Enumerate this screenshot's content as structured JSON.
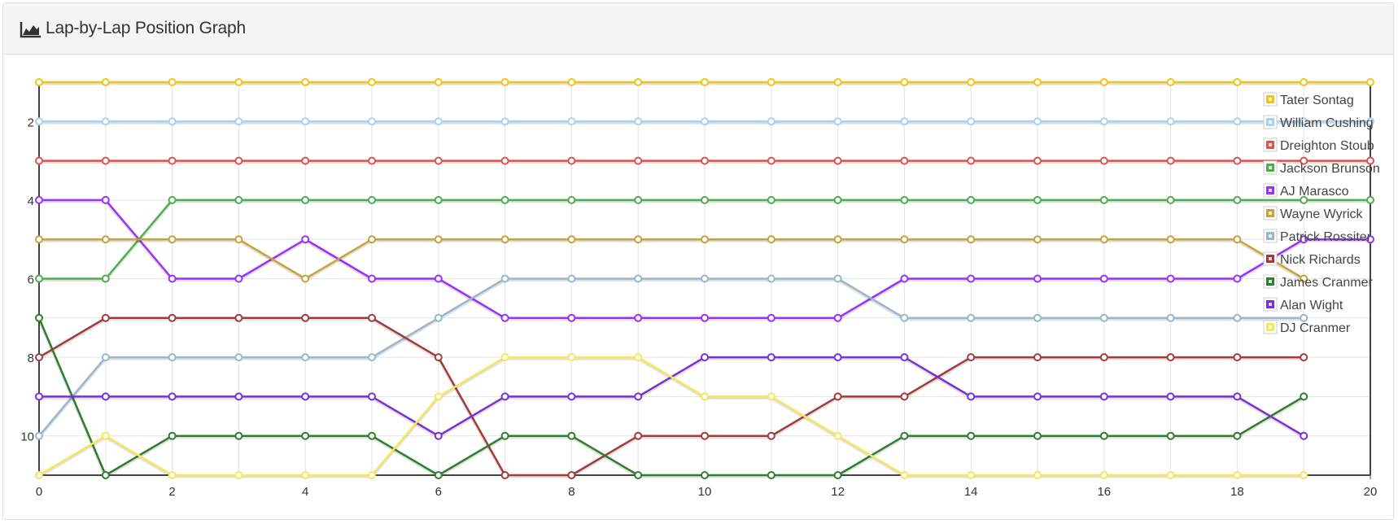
{
  "panel": {
    "title": "Lap-by-Lap Position Graph",
    "icon": "area-chart-icon"
  },
  "chart_data": {
    "type": "line",
    "title": "Lap-by-Lap Position Graph",
    "xlabel": "",
    "ylabel": "",
    "xlim": [
      0,
      20
    ],
    "ylim": [
      1,
      11
    ],
    "y_reversed": true,
    "x_ticks": [
      0,
      2,
      4,
      6,
      8,
      10,
      12,
      14,
      16,
      18,
      20
    ],
    "y_ticks": [
      2,
      4,
      6,
      8,
      10
    ],
    "grid": true,
    "legend_position": "top-right",
    "series": [
      {
        "name": "Tater Sontag",
        "color": "#f0c419",
        "values": [
          1,
          1,
          1,
          1,
          1,
          1,
          1,
          1,
          1,
          1,
          1,
          1,
          1,
          1,
          1,
          1,
          1,
          1,
          1,
          1,
          1
        ]
      },
      {
        "name": "William Cushing",
        "color": "#a9d2f0",
        "values": [
          2,
          2,
          2,
          2,
          2,
          2,
          2,
          2,
          2,
          2,
          2,
          2,
          2,
          2,
          2,
          2,
          2,
          2,
          2,
          2,
          2
        ]
      },
      {
        "name": "Dreighton Stoub",
        "color": "#d9534f",
        "values": [
          3,
          3,
          3,
          3,
          3,
          3,
          3,
          3,
          3,
          3,
          3,
          3,
          3,
          3,
          3,
          3,
          3,
          3,
          3,
          3,
          3
        ]
      },
      {
        "name": "Jackson Brunson",
        "color": "#4cae4c",
        "values": [
          6,
          6,
          4,
          4,
          4,
          4,
          4,
          4,
          4,
          4,
          4,
          4,
          4,
          4,
          4,
          4,
          4,
          4,
          4,
          4,
          4
        ]
      },
      {
        "name": "AJ Marasco",
        "color": "#9b30ff",
        "values": [
          4,
          4,
          6,
          6,
          5,
          6,
          6,
          7,
          7,
          7,
          7,
          7,
          7,
          6,
          6,
          6,
          6,
          6,
          6,
          5,
          5
        ]
      },
      {
        "name": "Wayne Wyrick",
        "color": "#c8a23a",
        "values": [
          5,
          5,
          5,
          5,
          6,
          5,
          5,
          5,
          5,
          5,
          5,
          5,
          5,
          5,
          5,
          5,
          5,
          5,
          5,
          6
        ]
      },
      {
        "name": "Patrick Rossiter",
        "color": "#9ab6cf",
        "values": [
          10,
          8,
          8,
          8,
          8,
          8,
          7,
          6,
          6,
          6,
          6,
          6,
          6,
          7,
          7,
          7,
          7,
          7,
          7,
          7
        ]
      },
      {
        "name": "Nick Richards",
        "color": "#a33b3b",
        "values": [
          8,
          7,
          7,
          7,
          7,
          7,
          8,
          11,
          11,
          10,
          10,
          10,
          9,
          9,
          8,
          8,
          8,
          8,
          8,
          8
        ]
      },
      {
        "name": "James Cranmer",
        "color": "#2f7d2f",
        "values": [
          7,
          11,
          10,
          10,
          10,
          10,
          11,
          10,
          10,
          11,
          11,
          11,
          11,
          10,
          10,
          10,
          10,
          10,
          10,
          9
        ]
      },
      {
        "name": "Alan Wight",
        "color": "#7b2fd6",
        "values": [
          9,
          9,
          9,
          9,
          9,
          9,
          10,
          9,
          9,
          9,
          8,
          8,
          8,
          8,
          9,
          9,
          9,
          9,
          9,
          10
        ]
      },
      {
        "name": "DJ Cranmer",
        "color": "#f7e55a",
        "values": [
          11,
          10,
          11,
          11,
          11,
          11,
          9,
          8,
          8,
          8,
          9,
          9,
          10,
          11,
          11,
          11,
          11,
          11,
          11,
          11
        ]
      }
    ]
  }
}
